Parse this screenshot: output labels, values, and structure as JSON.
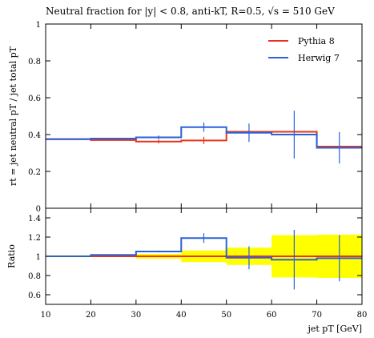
{
  "chart_data": [
    {
      "type": "line",
      "panel": "main",
      "title": "Neutral fraction for |y| < 0.8, anti-kT, R=0.5, √s = 510 GeV",
      "xlabel": "",
      "ylabel": "rt = jet neutral pT / jet total pT",
      "xlim": [
        10,
        80
      ],
      "ylim": [
        0,
        1
      ],
      "y_ticks": [
        "0",
        "0.2",
        "0.4",
        "0.6",
        "0.8",
        "1"
      ],
      "bin_edges": [
        10,
        20,
        30,
        40,
        50,
        60,
        70,
        80
      ],
      "legend": "top-right",
      "series": [
        {
          "name": "Pythia 8",
          "color": "#e8341c",
          "values": [
            0.375,
            0.37,
            0.362,
            0.368,
            0.415,
            0.415,
            0.335
          ],
          "errors": [
            0.0,
            0.0,
            0.01,
            0.02,
            0.0,
            0.0,
            0.0
          ]
        },
        {
          "name": "Herwig 7",
          "color": "#2a62d9",
          "values": [
            0.375,
            0.378,
            0.385,
            0.44,
            0.41,
            0.4,
            0.328
          ],
          "errors": [
            0.0,
            0.0,
            0.01,
            0.025,
            0.05,
            0.13,
            0.085
          ]
        }
      ]
    },
    {
      "type": "line",
      "panel": "ratio",
      "xlabel": "jet pT [GeV]",
      "ylabel": "Ratio",
      "xlim": [
        10,
        80
      ],
      "ylim": [
        0.5,
        1.5
      ],
      "y_ticks": [
        "0.6",
        "0.8",
        "1",
        "1.2",
        "1.4"
      ],
      "x_ticks": [
        "10",
        "20",
        "30",
        "40",
        "50",
        "60",
        "70",
        "80"
      ],
      "bin_edges": [
        10,
        20,
        30,
        40,
        50,
        60,
        70,
        80
      ],
      "band": {
        "color": "#ffff00",
        "lower": [
          0.99,
          0.995,
          0.975,
          0.94,
          0.91,
          0.78,
          0.775
        ],
        "upper": [
          1.01,
          1.005,
          1.025,
          1.06,
          1.09,
          1.22,
          1.225
        ]
      },
      "series": [
        {
          "name": "Pythia 8",
          "color": "#e8341c",
          "values": [
            1.0,
            1.0,
            1.0,
            1.0,
            1.0,
            1.0,
            1.0
          ],
          "errors": [
            0.0,
            0.0,
            0.0,
            0.0,
            0.0,
            0.0,
            0.0
          ]
        },
        {
          "name": "Herwig 7",
          "color": "#2a62d9",
          "values": [
            1.0,
            1.015,
            1.05,
            1.19,
            0.985,
            0.965,
            0.98
          ],
          "errors": [
            0.0,
            0.0,
            0.01,
            0.05,
            0.12,
            0.31,
            0.24
          ]
        }
      ]
    }
  ]
}
